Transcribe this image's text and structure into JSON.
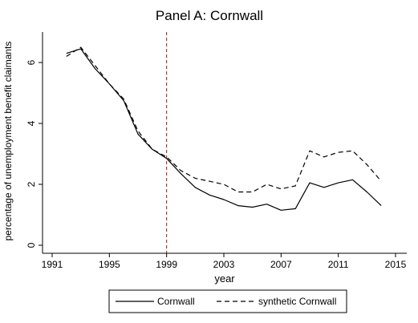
{
  "chart_data": {
    "type": "line",
    "title": "Panel A: Cornwall",
    "xlabel": "year",
    "ylabel": "percentage of unemployment benefit claimants",
    "xlim": [
      1991,
      2015
    ],
    "ylim": [
      0,
      7
    ],
    "xticks": [
      "1991",
      "1995",
      "1999",
      "2003",
      "2007",
      "2011",
      "2015"
    ],
    "yticks": [
      "0",
      "2",
      "4",
      "6"
    ],
    "grid": false,
    "legend_placement": "bottom",
    "vline": {
      "x": 1999,
      "color": "#8b1a1a",
      "style": "dashed"
    },
    "x": [
      1992,
      1993,
      1994,
      1995,
      1996,
      1997,
      1998,
      1999,
      2000,
      2001,
      2002,
      2003,
      2004,
      2005,
      2006,
      2007,
      2008,
      2009,
      2010,
      2011,
      2012,
      2013,
      2014
    ],
    "series": [
      {
        "name": "Cornwall",
        "style": "solid",
        "color": "#000000",
        "values": [
          6.3,
          6.45,
          5.8,
          5.3,
          4.75,
          3.65,
          3.15,
          2.85,
          2.35,
          1.9,
          1.65,
          1.5,
          1.3,
          1.25,
          1.35,
          1.15,
          1.2,
          2.05,
          1.9,
          2.05,
          2.15,
          1.75,
          1.3
        ]
      },
      {
        "name": "synthetic Cornwall",
        "style": "dashed",
        "color": "#000000",
        "values": [
          6.2,
          6.5,
          5.9,
          5.3,
          4.8,
          3.75,
          3.15,
          2.9,
          2.45,
          2.2,
          2.1,
          2.0,
          1.75,
          1.75,
          2.0,
          1.85,
          1.95,
          3.1,
          2.9,
          3.05,
          3.1,
          2.65,
          2.1
        ]
      }
    ]
  }
}
